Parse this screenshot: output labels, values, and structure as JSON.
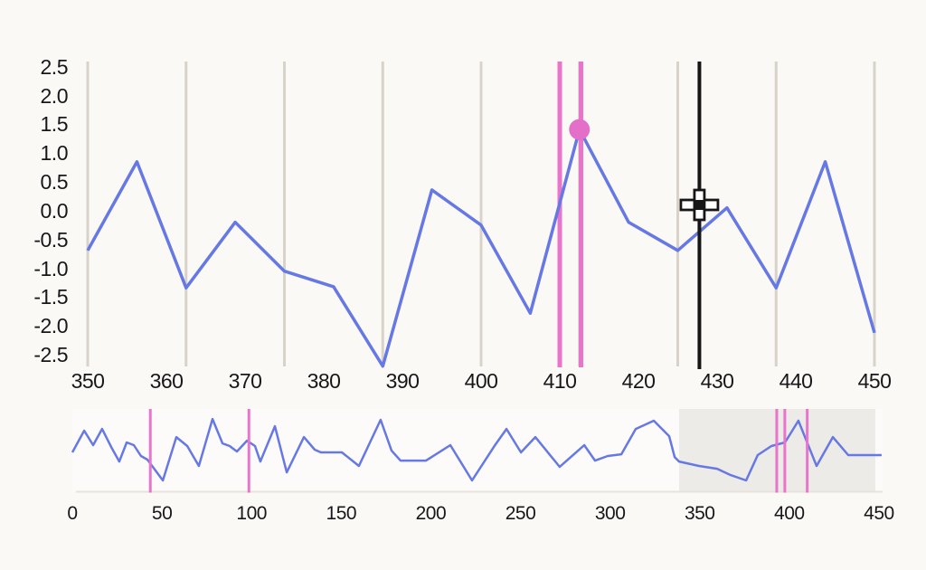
{
  "app": {
    "description": "Time-series labeling view with detail chart, event markers, crosshair cursor and overview navigator"
  },
  "colors": {
    "background": "#fbf9f6",
    "series_blue": "#6678e4",
    "event_pink": "#e874cb",
    "selected_point_pink": "#e36fc9",
    "gridline": "#d8d2c9",
    "cursor_black": "#161616",
    "crosshair_fill": "#ffffff",
    "window_shade": "#edebe7",
    "overview_plot_bg": "#fdfbf9",
    "overview_baseline": "#e7e2db",
    "axis_text": "#17171a"
  },
  "chart_data": [
    {
      "id": "main",
      "type": "line",
      "title": "",
      "xlabel": "",
      "ylabel": "",
      "xlim": [
        350,
        450
      ],
      "ylim": [
        -2.72,
        2.59
      ],
      "grid": "vertical-only",
      "legend": "none",
      "x_ticks": [
        350,
        360,
        370,
        380,
        390,
        400,
        410,
        420,
        430,
        440,
        450
      ],
      "x_tick_labels": [
        "350",
        "360",
        "370",
        "380",
        "390",
        "400",
        "410",
        "420",
        "430",
        "440",
        "450"
      ],
      "y_ticks": [
        2.5,
        2.0,
        1.5,
        1.0,
        0.5,
        0.0,
        -0.5,
        -1.0,
        -1.5,
        -2.0,
        -2.5
      ],
      "y_tick_labels": [
        "2.5",
        "2.0",
        "1.5",
        "1.0",
        "0.5",
        "0.0",
        "-0.5",
        "-1.0",
        "-1.5",
        "-2.0",
        "-2.5"
      ],
      "gridlines_x": [
        350,
        362.5,
        375,
        387.5,
        400,
        412.5,
        425,
        437.5,
        450
      ],
      "series": [
        {
          "name": "signal",
          "x": [
            350,
            356.25,
            362.5,
            368.75,
            375,
            381.25,
            387.5,
            393.75,
            400,
            406.25,
            412.5,
            418.75,
            425,
            431.25,
            437.5,
            443.75,
            450
          ],
          "y": [
            -0.69,
            0.85,
            -1.34,
            -0.2,
            -1.05,
            -1.32,
            -2.7,
            0.36,
            -0.25,
            -1.78,
            1.41,
            -0.2,
            -0.69,
            0.05,
            -1.34,
            0.85,
            -2.12
          ]
        }
      ],
      "event_lines_x": [
        410,
        412.7
      ],
      "selected_point": {
        "x": 412.5,
        "y": 1.41
      },
      "cursor": {
        "x": 427.75,
        "y": 0.1
      }
    },
    {
      "id": "overview",
      "type": "line",
      "title": "",
      "xlabel": "",
      "ylabel": "",
      "xlim": [
        0,
        452
      ],
      "ylim": [
        -2.53,
        3.13
      ],
      "grid": "none",
      "legend": "none",
      "x_ticks": [
        0,
        50,
        100,
        150,
        200,
        250,
        300,
        350,
        400,
        450
      ],
      "x_tick_labels": [
        "0",
        "50",
        "100",
        "150",
        "200",
        "250",
        "300",
        "350",
        "400",
        "450"
      ],
      "series": [
        {
          "name": "signal-overview",
          "x": [
            0,
            6.6,
            11.6,
            16.6,
            21.7,
            26.2,
            30.3,
            34.3,
            38.3,
            41.9,
            50.5,
            58,
            64.1,
            70.6,
            78.2,
            83.8,
            87.8,
            91.8,
            97.4,
            101.9,
            104.9,
            113,
            119.6,
            129.2,
            135.2,
            138.7,
            150.4,
            159.9,
            172,
            178.1,
            183.1,
            197.3,
            210.9,
            223,
            236.1,
            242.2,
            250.3,
            258.3,
            271.9,
            285.6,
            291.6,
            298.7,
            306.3,
            314.3,
            324.4,
            333,
            336,
            338.5,
            349.6,
            359.7,
            367.3,
            375.9,
            382.4,
            390,
            397.6,
            405.1,
            415.2,
            424.3,
            432.9,
            442.4,
            451.5
          ],
          "y": [
            0.19,
            1.69,
            0.69,
            1.81,
            0.56,
            -0.44,
            0.88,
            0.69,
            -0.06,
            -0.31,
            -1.75,
            1.25,
            0.63,
            -0.75,
            2.5,
            0.81,
            0.63,
            0.25,
            1,
            0.63,
            -0.44,
            2,
            -1.19,
            1.25,
            0.38,
            0.19,
            0.19,
            -0.75,
            2.44,
            0.31,
            -0.38,
            -0.38,
            0.69,
            -1.75,
            0.75,
            1.81,
            0.19,
            1.25,
            -0.81,
            0.69,
            -0.38,
            -0.06,
            0.06,
            1.81,
            2.38,
            1.31,
            -0.13,
            -0.44,
            -0.75,
            -0.94,
            -1.38,
            -1.75,
            0,
            0.63,
            0.88,
            2.38,
            -0.75,
            1.25,
            0,
            0,
            0
          ]
        }
      ],
      "event_lines_x": [
        43.5,
        98.5,
        393,
        397.5,
        410
      ],
      "window": [
        338.5,
        448
      ]
    }
  ]
}
